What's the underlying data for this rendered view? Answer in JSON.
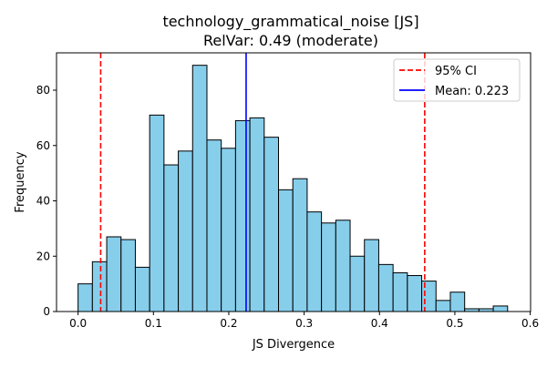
{
  "chart_data": {
    "type": "bar",
    "title": "technology_grammatical_noise [JS]",
    "subtitle": "RelVar: 0.49 (moderate)",
    "xlabel": "JS Divergence",
    "ylabel": "Frequency",
    "xlim": [
      -0.0286,
      0.6005
    ],
    "ylim": [
      0,
      93.5
    ],
    "xticks": [
      0.0,
      0.1,
      0.2,
      0.3,
      0.4,
      0.5,
      0.6
    ],
    "xtick_labels": [
      "0.0",
      "0.1",
      "0.2",
      "0.3",
      "0.4",
      "0.5",
      "0.6"
    ],
    "yticks": [
      0,
      20,
      40,
      60,
      80
    ],
    "ytick_labels": [
      "0",
      "20",
      "40",
      "60",
      "80"
    ],
    "bin_start": 0.0,
    "bin_width": 0.019,
    "values": [
      10,
      18,
      27,
      26,
      16,
      71,
      53,
      58,
      89,
      62,
      59,
      69,
      70,
      63,
      44,
      48,
      36,
      32,
      33,
      20,
      26,
      17,
      14,
      13,
      11,
      4,
      7,
      1,
      1,
      2
    ],
    "bar_color": "#87CEEB",
    "bar_edge_color": "#000000",
    "reference_lines": [
      {
        "x": 0.03,
        "color": "#ff0000",
        "style": "dashed"
      },
      {
        "x": 0.46,
        "color": "#ff0000",
        "style": "dashed"
      },
      {
        "x": 0.223,
        "color": "#0000ff",
        "style": "solid"
      }
    ],
    "legend": {
      "placement": "top-right",
      "entries": [
        {
          "label": "95% CI",
          "color": "#ff0000",
          "style": "dashed"
        },
        {
          "label": "Mean: 0.223",
          "color": "#0000ff",
          "style": "solid"
        }
      ]
    },
    "grid": false
  }
}
